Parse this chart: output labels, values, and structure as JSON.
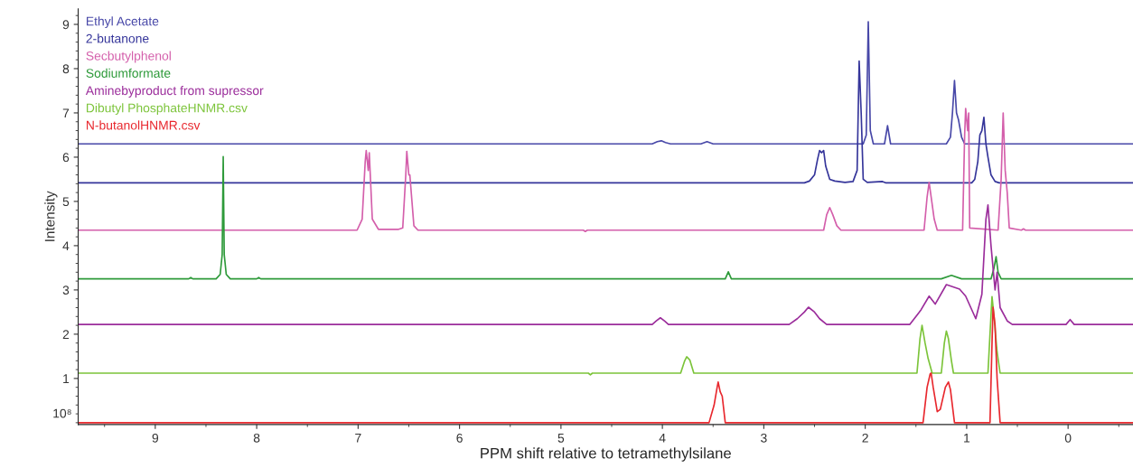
{
  "chart_data": {
    "type": "line",
    "xlabel": "PPM shift relative to tetramethylsilane",
    "ylabel": "Intensity",
    "annotations": [
      "10⁸"
    ],
    "xlim": [
      9.76,
      -0.64
    ],
    "xticks": [
      9,
      8,
      7,
      6,
      5,
      4,
      3,
      2,
      1,
      0
    ],
    "ylim": [
      -0.04,
      9.35
    ],
    "yticks": [
      1,
      2,
      3,
      4,
      5,
      6,
      7,
      8,
      9
    ],
    "grid": false,
    "legend": "top left",
    "marker": "none",
    "line_style": "solid",
    "series": [
      {
        "name": "Ethyl Acetate",
        "color": "#4848a8",
        "x": [
          9.76,
          4.1,
          4.05,
          4.01,
          3.97,
          3.92,
          3.62,
          3.56,
          3.5,
          2.02,
          1.99,
          1.97,
          1.95,
          1.92,
          1.81,
          1.78,
          1.75,
          1.2,
          1.16,
          1.14,
          1.12,
          1.1,
          1.08,
          1.05,
          1.02,
          -0.64
        ],
        "values": [
          6.3,
          6.3,
          6.35,
          6.37,
          6.33,
          6.3,
          6.3,
          6.35,
          6.3,
          6.3,
          6.5,
          9.06,
          6.6,
          6.3,
          6.3,
          6.71,
          6.3,
          6.3,
          6.45,
          7.0,
          7.73,
          7.0,
          6.84,
          6.45,
          6.3,
          6.3
        ]
      },
      {
        "name": "2-butanone",
        "color": "#35359a",
        "x": [
          9.76,
          2.6,
          2.55,
          2.5,
          2.47,
          2.45,
          2.43,
          2.41,
          2.39,
          2.35,
          2.3,
          2.2,
          2.12,
          2.08,
          2.06,
          2.04,
          2.02,
          1.98,
          1.83,
          1.8,
          0.95,
          0.92,
          0.89,
          0.87,
          0.85,
          0.83,
          0.81,
          0.79,
          0.76,
          0.72,
          0.68,
          -0.64
        ],
        "values": [
          5.42,
          5.42,
          5.46,
          5.6,
          5.95,
          6.15,
          6.1,
          6.15,
          5.8,
          5.5,
          5.46,
          5.43,
          5.45,
          5.7,
          8.17,
          7.0,
          5.5,
          5.43,
          5.45,
          5.42,
          5.42,
          5.5,
          5.9,
          6.5,
          6.6,
          6.9,
          6.3,
          6.0,
          5.6,
          5.45,
          5.42,
          5.42
        ]
      },
      {
        "name": "Secbutylphenol",
        "color": "#d45fab",
        "x": [
          9.76,
          7.01,
          6.96,
          6.93,
          6.92,
          6.9,
          6.89,
          6.86,
          6.8,
          6.6,
          6.56,
          6.53,
          6.52,
          6.5,
          6.49,
          6.45,
          6.41,
          4.78,
          4.76,
          4.74,
          2.41,
          2.38,
          2.35,
          2.32,
          2.28,
          2.24,
          1.42,
          1.39,
          1.37,
          1.35,
          1.32,
          1.29,
          1.04,
          1.02,
          1.01,
          0.99,
          0.98,
          0.97,
          0.69,
          0.66,
          0.64,
          0.62,
          0.6,
          0.58,
          0.46,
          0.44,
          0.42,
          -0.64
        ],
        "values": [
          4.35,
          4.35,
          4.6,
          5.9,
          6.15,
          5.7,
          6.1,
          4.6,
          4.37,
          4.37,
          4.4,
          5.6,
          6.13,
          5.6,
          5.6,
          4.45,
          4.35,
          4.35,
          4.32,
          4.35,
          4.35,
          4.7,
          4.86,
          4.7,
          4.45,
          4.35,
          4.35,
          5.1,
          5.43,
          5.1,
          4.6,
          4.35,
          4.35,
          6.5,
          7.1,
          6.6,
          7.0,
          4.4,
          4.35,
          5.5,
          7.0,
          5.7,
          5.2,
          4.4,
          4.35,
          4.38,
          4.35,
          4.35
        ]
      },
      {
        "name": "Sodiumformate",
        "color": "#2e9a3a",
        "x": [
          9.76,
          8.67,
          8.65,
          8.63,
          8.4,
          8.36,
          8.34,
          8.33,
          8.32,
          8.3,
          8.26,
          8.0,
          7.98,
          7.96,
          3.38,
          3.35,
          3.32,
          1.25,
          1.15,
          1.05,
          0.76,
          0.73,
          0.71,
          0.69,
          0.66,
          -0.64
        ],
        "values": [
          3.25,
          3.25,
          3.28,
          3.25,
          3.25,
          3.35,
          3.8,
          6.01,
          3.8,
          3.35,
          3.25,
          3.25,
          3.28,
          3.25,
          3.25,
          3.41,
          3.25,
          3.25,
          3.33,
          3.25,
          3.25,
          3.5,
          3.75,
          3.4,
          3.25,
          3.25
        ]
      },
      {
        "name": "Aminebyproduct from supressor",
        "color": "#9b2d9b",
        "x": [
          9.76,
          4.1,
          4.06,
          4.02,
          3.98,
          3.94,
          2.75,
          2.67,
          2.6,
          2.56,
          2.5,
          2.45,
          2.38,
          1.56,
          1.45,
          1.37,
          1.31,
          1.2,
          1.07,
          1.01,
          0.91,
          0.85,
          0.81,
          0.79,
          0.76,
          0.72,
          0.7,
          0.67,
          0.6,
          0.55,
          0.02,
          -0.02,
          -0.06,
          -0.64
        ],
        "values": [
          2.22,
          2.22,
          2.3,
          2.37,
          2.3,
          2.22,
          2.22,
          2.35,
          2.5,
          2.61,
          2.5,
          2.35,
          2.22,
          2.22,
          2.55,
          2.86,
          2.68,
          3.12,
          3.02,
          2.86,
          2.35,
          2.9,
          4.6,
          4.92,
          4.0,
          3.0,
          3.4,
          2.6,
          2.3,
          2.22,
          2.22,
          2.33,
          2.22,
          2.22
        ]
      },
      {
        "name": "Dibutyl PhosphateHNMR.csv",
        "color": "#7cc43a",
        "x": [
          9.76,
          4.73,
          4.71,
          4.69,
          3.82,
          3.78,
          3.76,
          3.73,
          3.69,
          1.49,
          1.46,
          1.44,
          1.41,
          1.38,
          1.34,
          1.25,
          1.22,
          1.2,
          1.18,
          1.15,
          1.13,
          0.79,
          0.77,
          0.75,
          0.73,
          0.7,
          0.67,
          -0.64
        ],
        "values": [
          1.12,
          1.12,
          1.08,
          1.12,
          1.12,
          1.4,
          1.49,
          1.42,
          1.12,
          1.12,
          1.9,
          2.2,
          1.8,
          1.45,
          1.12,
          1.12,
          1.8,
          2.07,
          1.9,
          1.4,
          1.12,
          1.12,
          2.0,
          2.85,
          2.4,
          1.6,
          1.12,
          1.12
        ]
      },
      {
        "name": "N-butanolHNMR.csv",
        "color": "#e8282e",
        "x": [
          9.76,
          3.54,
          3.49,
          3.46,
          3.45,
          3.43,
          3.41,
          3.38,
          1.43,
          1.39,
          1.36,
          1.35,
          1.33,
          1.29,
          1.26,
          1.21,
          1.18,
          1.16,
          1.12,
          0.77,
          0.75,
          0.74,
          0.72,
          0.7,
          0.67,
          -0.64
        ],
        "values": [
          0.0,
          0.0,
          0.4,
          0.8,
          0.92,
          0.7,
          0.6,
          0.0,
          0.0,
          0.8,
          1.1,
          1.12,
          0.8,
          0.25,
          0.3,
          0.8,
          0.92,
          0.75,
          0.0,
          0.0,
          1.8,
          2.61,
          2.2,
          1.0,
          0.0,
          0.0
        ]
      }
    ]
  }
}
